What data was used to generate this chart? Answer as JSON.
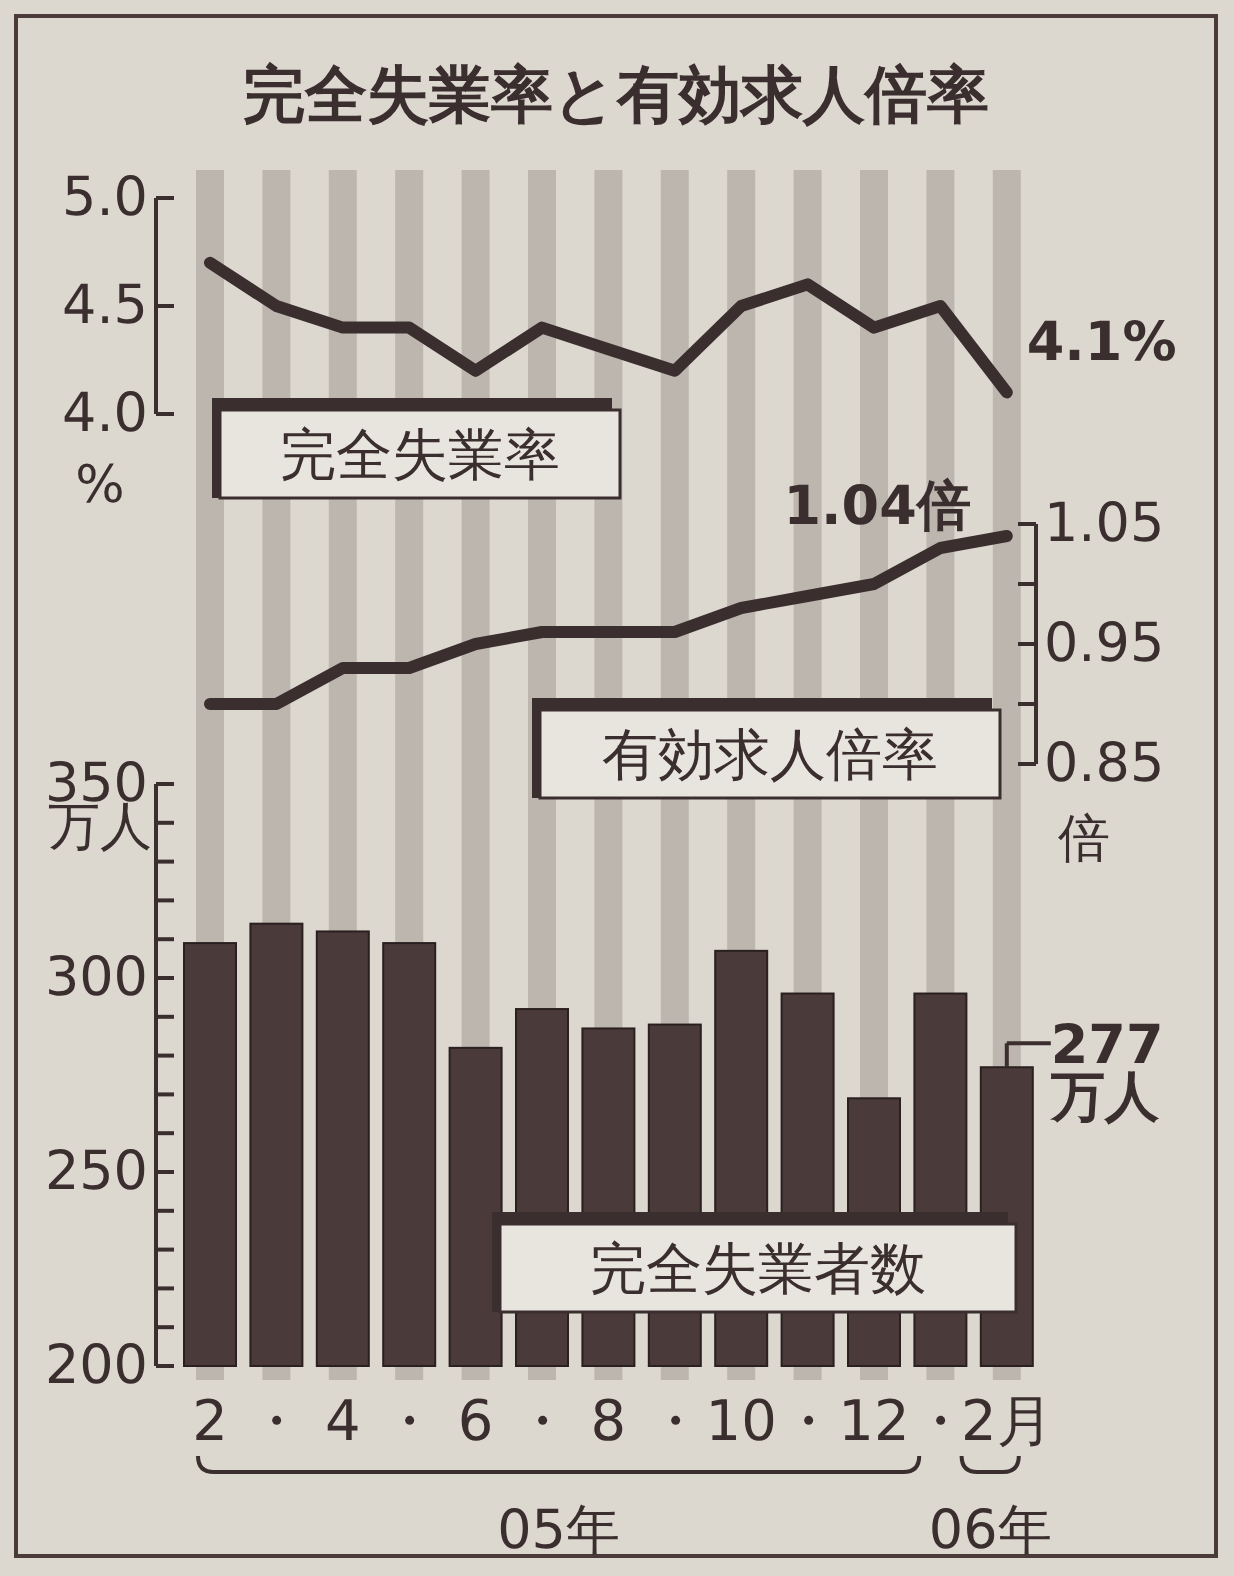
{
  "chart_data": [
    {
      "type": "line",
      "title": "完全失業率と有効求人倍率",
      "categories": [
        null,
        null,
        null,
        null,
        null,
        null,
        null,
        null,
        null,
        null,
        null,
        null,
        null
      ],
      "series": [
        {
          "name": "完全失業率",
          "color": "#3b2e2e",
          "values": [
            4.7,
            4.5,
            4.4,
            4.4,
            4.2,
            4.4,
            4.3,
            4.2,
            4.5,
            4.6,
            4.4,
            4.5,
            4.1
          ],
          "value_labels": [
            null,
            null,
            null,
            null,
            null,
            null,
            null,
            null,
            null,
            null,
            null,
            null,
            "4.1%"
          ]
        }
      ],
      "ylim": [
        4.0,
        5.0
      ],
      "yticks": [
        {
          "value": 4.0,
          "label": "4.0"
        },
        4.5,
        {
          "value": 5.0,
          "label": "5.0"
        }
      ],
      "ylabel": "%",
      "grid": "x"
    },
    {
      "type": "line",
      "categories": [
        null,
        null,
        null,
        null,
        null,
        null,
        null,
        null,
        null,
        null,
        null,
        null,
        null
      ],
      "series": [
        {
          "name": "有効求人倍率",
          "color": "#3b2e2e",
          "values": [
            0.9,
            0.9,
            0.93,
            0.93,
            0.95,
            0.96,
            0.96,
            0.96,
            0.98,
            0.99,
            1.0,
            1.03,
            1.04
          ],
          "value_labels": [
            null,
            null,
            null,
            null,
            null,
            null,
            null,
            null,
            null,
            null,
            null,
            null,
            "1.04倍"
          ]
        }
      ],
      "ylim": [
        0.85,
        1.05
      ],
      "yticks": [
        0.85,
        {
          "value": 0.9,
          "label": null
        },
        0.95,
        {
          "value": 1.0,
          "label": null
        },
        1.05
      ],
      "ylabel": "倍",
      "grid": "x"
    },
    {
      "type": "bar",
      "categories": [
        "2",
        "・",
        "4",
        "・",
        "6",
        "・",
        "8",
        "・",
        "10",
        "・",
        "12",
        "・",
        "2月"
      ],
      "series": [
        {
          "name": "完全失業者数",
          "color": "#4a3a3a",
          "values": [
            309,
            314,
            312,
            309,
            282,
            292,
            287,
            288,
            307,
            296,
            269,
            296,
            277
          ],
          "value_labels": [
            null,
            null,
            null,
            null,
            null,
            null,
            null,
            null,
            null,
            null,
            null,
            null,
            "277\n万人"
          ]
        }
      ],
      "ylim": [
        200,
        350
      ],
      "yticks": [
        200,
        {
          "value": 210,
          "label": null
        },
        {
          "value": 220,
          "label": null
        },
        {
          "value": 230,
          "label": null
        },
        {
          "value": 240,
          "label": null
        },
        250,
        {
          "value": 260,
          "label": null
        },
        {
          "value": 270,
          "label": null
        },
        {
          "value": 280,
          "label": null
        },
        {
          "value": 290,
          "label": null
        },
        300,
        {
          "value": 310,
          "label": null
        },
        {
          "value": 320,
          "label": null
        },
        {
          "value": 330,
          "label": null
        },
        {
          "value": 340,
          "label": null
        },
        350
      ],
      "ylabel": "万人",
      "grid": "x",
      "annotations": [
        "05年",
        "06年"
      ]
    }
  ]
}
